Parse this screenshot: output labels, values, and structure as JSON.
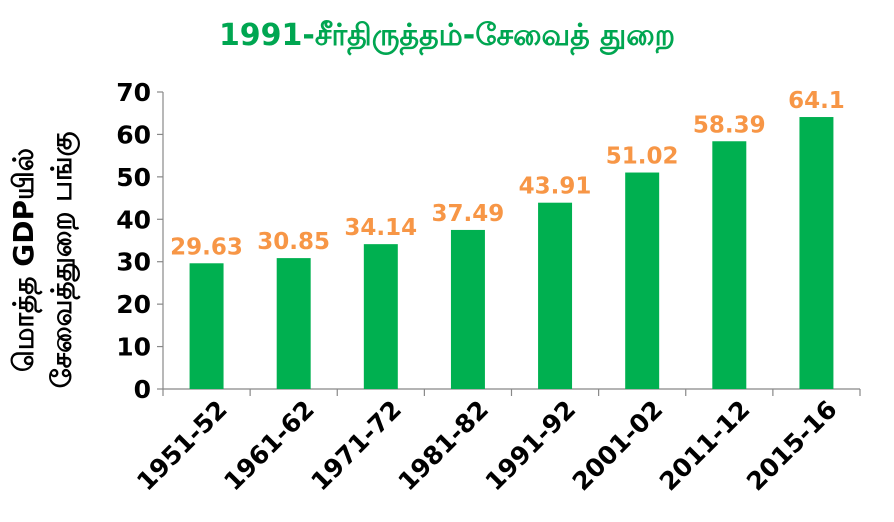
{
  "chart_data": {
    "type": "bar",
    "title": "1991-சீர்திருத்தம்-சேவைத் துறை",
    "ylabel_line1": "மொத்த GDPயில்",
    "ylabel_line2": "சேவைத்துறை பங்கு",
    "xlabel": "",
    "categories": [
      "1951-52",
      "1961-62",
      "1971-72",
      "1981-82",
      "1991-92",
      "2001-02",
      "2011-12",
      "2015-16"
    ],
    "values": [
      29.63,
      30.85,
      34.14,
      37.49,
      43.91,
      51.02,
      58.39,
      64.1
    ],
    "data_labels": [
      "29.63",
      "30.85",
      "34.14",
      "37.49",
      "43.91",
      "51.02",
      "58.39",
      "64.1"
    ],
    "ylim": [
      0,
      70
    ],
    "yticks": [
      0,
      10,
      20,
      30,
      40,
      50,
      60,
      70
    ],
    "grid": false,
    "legend": "none",
    "bar_color": "#00b050",
    "label_color": "#f79646",
    "title_color": "#00a651"
  }
}
